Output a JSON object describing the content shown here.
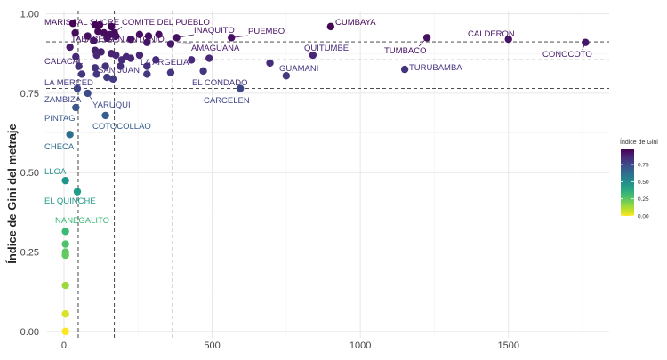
{
  "chart_data": {
    "type": "scatter",
    "title": "",
    "xlabel": "",
    "ylabel": "Índice de Gini del metraje",
    "xlim": [
      -60,
      1840
    ],
    "ylim": [
      -0.02,
      1.01
    ],
    "x_ticks": [
      0,
      500,
      1000,
      1500
    ],
    "y_ticks": [
      0.0,
      0.25,
      0.5,
      0.75,
      1.0
    ],
    "x_tick_labels": [
      "0",
      "500",
      "1000",
      "1500"
    ],
    "y_tick_labels": [
      "0.00",
      "0.25",
      "0.50",
      "0.75",
      "1.00"
    ],
    "grid": true,
    "color_scale": "viridis",
    "colorbar": {
      "title": "Índice de Gini",
      "ticks": [
        0.0,
        0.25,
        0.5,
        0.75
      ],
      "tick_labels": [
        "0.00",
        "0.25",
        "0.50",
        "0.75"
      ],
      "range": [
        0.0,
        0.97
      ],
      "placement": "right"
    },
    "reference_lines": {
      "vertical": [
        48,
        170,
        367
      ],
      "horizontal": [
        0.765,
        0.855,
        0.912
      ]
    },
    "points": [
      {
        "x": 38,
        "y": 0.94,
        "label": "MARISCAL SUCRE"
      },
      {
        "x": 170,
        "y": 0.94,
        "label": "COMITE DEL PUEBLO"
      },
      {
        "x": 380,
        "y": 0.925,
        "label": "INAQUITO"
      },
      {
        "x": 565,
        "y": 0.925,
        "label": "PUEMBO"
      },
      {
        "x": 900,
        "y": 0.96,
        "label": "CUMBAYA"
      },
      {
        "x": 1500,
        "y": 0.92,
        "label": "CALDERON"
      },
      {
        "x": 1225,
        "y": 0.925,
        "label": "TUMBACO"
      },
      {
        "x": 1760,
        "y": 0.91,
        "label": "CONOCOTO"
      },
      {
        "x": 100,
        "y": 0.915,
        "label": "TABABELA"
      },
      {
        "x": 145,
        "y": 0.925,
        "label": "SAN ANTONIO"
      },
      {
        "x": 360,
        "y": 0.905,
        "label": "AMAGUANA"
      },
      {
        "x": 840,
        "y": 0.87,
        "label": "QUITUMBE"
      },
      {
        "x": 40,
        "y": 0.865,
        "label": "CALACALI"
      },
      {
        "x": 310,
        "y": 0.855,
        "label": "LA ARGELIA"
      },
      {
        "x": 140,
        "y": 0.835,
        "label": "SAN JUAN"
      },
      {
        "x": 470,
        "y": 0.82,
        "label": "EL CONDADO"
      },
      {
        "x": 1150,
        "y": 0.825,
        "label": "TURUBAMBA"
      },
      {
        "x": 750,
        "y": 0.805,
        "label": "GUAMANI"
      },
      {
        "x": 60,
        "y": 0.81,
        "label": "LA MERCED"
      },
      {
        "x": 595,
        "y": 0.765,
        "label": "CARCELEN"
      },
      {
        "x": 45,
        "y": 0.765,
        "label": "ZAMBIZA"
      },
      {
        "x": 80,
        "y": 0.75,
        "label": "YARUQUI"
      },
      {
        "x": 140,
        "y": 0.68,
        "label": "COTOCOLLAO"
      },
      {
        "x": 40,
        "y": 0.705,
        "label": "PINTAG"
      },
      {
        "x": 20,
        "y": 0.62,
        "label": "CHECA"
      },
      {
        "x": 5,
        "y": 0.475,
        "label": "LLOA"
      },
      {
        "x": 45,
        "y": 0.44,
        "label": "EL QUINCHE"
      },
      {
        "x": 5,
        "y": 0.315,
        "label": "NANEGALITO"
      },
      {
        "x": 30,
        "y": 0.97
      },
      {
        "x": 105,
        "y": 0.965
      },
      {
        "x": 120,
        "y": 0.965
      },
      {
        "x": 160,
        "y": 0.96
      },
      {
        "x": 115,
        "y": 0.945
      },
      {
        "x": 135,
        "y": 0.94
      },
      {
        "x": 155,
        "y": 0.935
      },
      {
        "x": 175,
        "y": 0.93
      },
      {
        "x": 255,
        "y": 0.935
      },
      {
        "x": 285,
        "y": 0.93
      },
      {
        "x": 320,
        "y": 0.935
      },
      {
        "x": 80,
        "y": 0.93
      },
      {
        "x": 225,
        "y": 0.92
      },
      {
        "x": 280,
        "y": 0.91
      },
      {
        "x": 105,
        "y": 0.885
      },
      {
        "x": 125,
        "y": 0.88
      },
      {
        "x": 160,
        "y": 0.875
      },
      {
        "x": 175,
        "y": 0.87
      },
      {
        "x": 110,
        "y": 0.87
      },
      {
        "x": 195,
        "y": 0.855
      },
      {
        "x": 210,
        "y": 0.865
      },
      {
        "x": 225,
        "y": 0.86
      },
      {
        "x": 255,
        "y": 0.87
      },
      {
        "x": 430,
        "y": 0.855
      },
      {
        "x": 490,
        "y": 0.86
      },
      {
        "x": 695,
        "y": 0.845
      },
      {
        "x": 20,
        "y": 0.895
      },
      {
        "x": 50,
        "y": 0.835
      },
      {
        "x": 105,
        "y": 0.83
      },
      {
        "x": 190,
        "y": 0.835
      },
      {
        "x": 280,
        "y": 0.835
      },
      {
        "x": 360,
        "y": 0.815
      },
      {
        "x": 145,
        "y": 0.8
      },
      {
        "x": 165,
        "y": 0.795
      },
      {
        "x": 280,
        "y": 0.81
      },
      {
        "x": 110,
        "y": 0.81
      },
      {
        "x": 5,
        "y": 0.275
      },
      {
        "x": 5,
        "y": 0.25
      },
      {
        "x": 5,
        "y": 0.24
      },
      {
        "x": 5,
        "y": 0.145
      },
      {
        "x": 5,
        "y": 0.055
      },
      {
        "x": 5,
        "y": 0.0
      }
    ]
  }
}
